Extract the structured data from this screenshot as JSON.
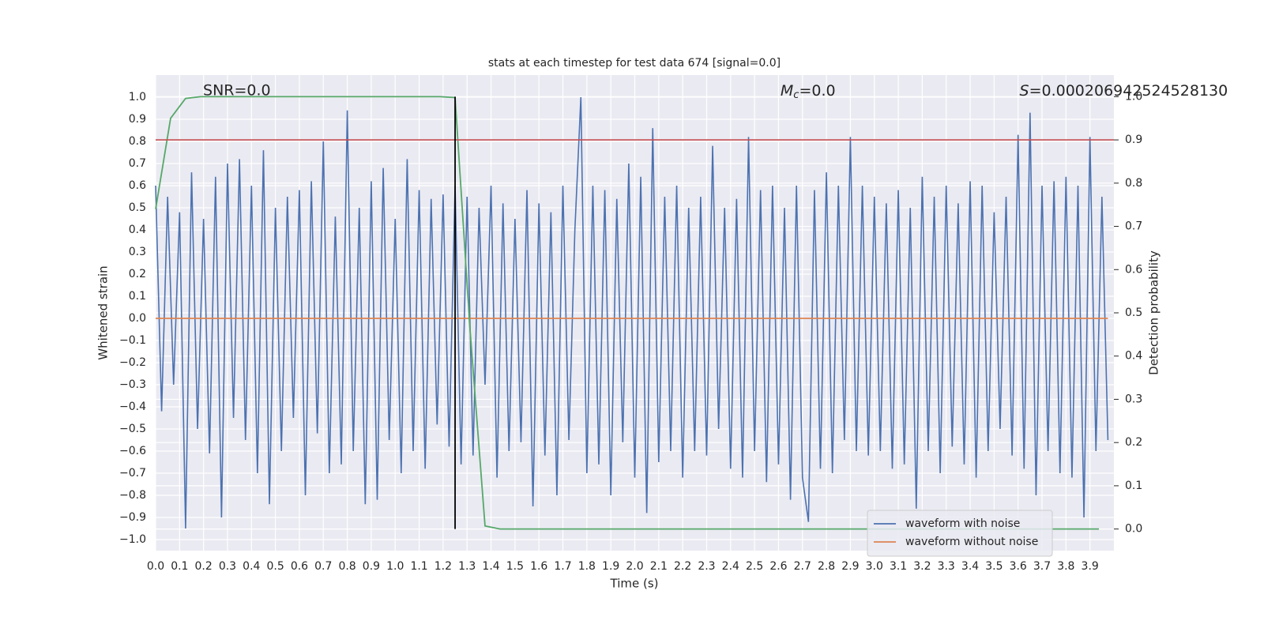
{
  "chart_data": {
    "type": "line",
    "title": "stats at each timestep for test data 674 [signal=0.0]",
    "xlabel": "Time (s)",
    "ylabel": "Whitened strain",
    "y2label": "Detection probability",
    "xlim": [
      0,
      4.0
    ],
    "ylim": [
      -1.05,
      1.1
    ],
    "y2lim": [
      -0.05,
      1.05
    ],
    "grid": true,
    "legend_loc": "lower right",
    "xticks": [
      {
        "value": 0,
        "label": "0.0"
      },
      0.1,
      0.2,
      0.3,
      0.4,
      0.5,
      0.6,
      0.7,
      0.8,
      0.9,
      {
        "value": 1,
        "label": "1.0"
      },
      1.1,
      1.2,
      1.3,
      1.4,
      1.5,
      1.6,
      1.7,
      1.8,
      1.9,
      {
        "value": 2,
        "label": "2.0"
      },
      2.1,
      2.2,
      2.3,
      2.4,
      2.5,
      2.6,
      2.7,
      2.8,
      2.9,
      {
        "value": 3,
        "label": "3.0"
      },
      3.1,
      3.2,
      3.3,
      3.4,
      3.5,
      3.6,
      3.7,
      3.8,
      3.9
    ],
    "yticks": [
      {
        "value": -1,
        "label": "−1.0"
      },
      {
        "value": -0.9,
        "label": "−0.9"
      },
      {
        "value": -0.8,
        "label": "−0.8"
      },
      {
        "value": -0.7,
        "label": "−0.7"
      },
      {
        "value": -0.6,
        "label": "−0.6"
      },
      {
        "value": -0.5,
        "label": "−0.5"
      },
      {
        "value": -0.4,
        "label": "−0.4"
      },
      {
        "value": -0.3,
        "label": "−0.3"
      },
      {
        "value": -0.2,
        "label": "−0.2"
      },
      {
        "value": -0.1,
        "label": "−0.1"
      },
      {
        "value": 0,
        "label": "0.0"
      },
      0.1,
      0.2,
      0.3,
      0.4,
      0.5,
      0.6,
      0.7,
      0.8,
      0.9,
      {
        "value": 1,
        "label": "1.0"
      }
    ],
    "y2ticks": [
      {
        "value": 0,
        "label": "0.0"
      },
      0.1,
      0.2,
      0.3,
      0.4,
      0.5,
      0.6,
      0.7,
      0.8,
      0.9,
      {
        "value": 1,
        "label": "1.0"
      }
    ],
    "threshold": {
      "value": 0.9,
      "axis": "y2",
      "color": "#c44e52"
    },
    "marker_x": {
      "value": 1.25,
      "color": "#000000"
    },
    "annotations": {
      "snr": "SNR=0.0",
      "mc": {
        "symbol": "M",
        "subscript": "c",
        "text": "=0.0"
      },
      "s": {
        "symbol": "S",
        "text": "=0.000206942524528130"
      }
    },
    "series": [
      {
        "name": "waveform with noise",
        "color": "#4c72b0",
        "legend": true,
        "x": [
          0,
          0.025,
          0.05,
          0.075,
          0.1,
          0.125,
          0.15,
          0.175,
          0.2,
          0.225,
          0.25,
          0.275,
          0.3,
          0.325,
          0.35,
          0.375,
          0.4,
          0.425,
          0.45,
          0.475,
          0.5,
          0.525,
          0.55,
          0.575,
          0.6,
          0.625,
          0.65,
          0.675,
          0.7,
          0.725,
          0.75,
          0.775,
          0.8,
          0.825,
          0.85,
          0.875,
          0.9,
          0.925,
          0.95,
          0.975,
          1,
          1.025,
          1.05,
          1.075,
          1.1,
          1.125,
          1.15,
          1.175,
          1.2,
          1.225,
          1.25,
          1.275,
          1.3,
          1.325,
          1.35,
          1.375,
          1.4,
          1.425,
          1.45,
          1.475,
          1.5,
          1.525,
          1.55,
          1.575,
          1.6,
          1.625,
          1.65,
          1.675,
          1.7,
          1.725,
          1.75,
          1.775,
          1.8,
          1.825,
          1.85,
          1.875,
          1.9,
          1.925,
          1.95,
          1.975,
          2,
          2.025,
          2.05,
          2.075,
          2.1,
          2.125,
          2.15,
          2.175,
          2.2,
          2.225,
          2.25,
          2.275,
          2.3,
          2.325,
          2.35,
          2.375,
          2.4,
          2.425,
          2.45,
          2.475,
          2.5,
          2.525,
          2.55,
          2.575,
          2.6,
          2.625,
          2.65,
          2.675,
          2.7,
          2.725,
          2.75,
          2.775,
          2.8,
          2.825,
          2.85,
          2.875,
          2.9,
          2.925,
          2.95,
          2.975,
          3,
          3.025,
          3.05,
          3.075,
          3.1,
          3.125,
          3.15,
          3.175,
          3.2,
          3.225,
          3.25,
          3.275,
          3.3,
          3.325,
          3.35,
          3.375,
          3.4,
          3.425,
          3.45,
          3.475,
          3.5,
          3.525,
          3.55,
          3.575,
          3.6,
          3.625,
          3.65,
          3.675,
          3.7,
          3.725,
          3.75,
          3.775,
          3.8,
          3.825,
          3.85,
          3.875,
          3.9,
          3.925,
          3.95,
          3.975
        ],
        "values": [
          0.6,
          -0.42,
          0.55,
          -0.3,
          0.48,
          -0.95,
          0.66,
          -0.5,
          0.45,
          -0.61,
          0.64,
          -0.9,
          0.7,
          -0.45,
          0.72,
          -0.55,
          0.6,
          -0.7,
          0.76,
          -0.84,
          0.5,
          -0.6,
          0.55,
          -0.45,
          0.58,
          -0.8,
          0.62,
          -0.52,
          0.8,
          -0.7,
          0.46,
          -0.66,
          0.94,
          -0.6,
          0.5,
          -0.84,
          0.62,
          -0.82,
          0.68,
          -0.55,
          0.45,
          -0.7,
          0.72,
          -0.6,
          0.58,
          -0.68,
          0.54,
          -0.48,
          0.56,
          -0.58,
          0.6,
          -0.66,
          0.55,
          -0.62,
          0.5,
          -0.3,
          0.6,
          -0.72,
          0.52,
          -0.6,
          0.45,
          -0.56,
          0.58,
          -0.85,
          0.52,
          -0.62,
          0.48,
          -0.8,
          0.6,
          -0.55,
          0.4,
          1.0,
          -0.7,
          0.6,
          -0.66,
          0.58,
          -0.8,
          0.54,
          -0.56,
          0.7,
          -0.72,
          0.64,
          -0.88,
          0.86,
          -0.65,
          0.55,
          -0.6,
          0.6,
          -0.72,
          0.5,
          -0.6,
          0.55,
          -0.62,
          0.78,
          -0.5,
          0.5,
          -0.68,
          0.54,
          -0.72,
          0.82,
          -0.6,
          0.58,
          -0.74,
          0.6,
          -0.66,
          0.5,
          -0.82,
          0.6,
          -0.72,
          -0.92,
          0.58,
          -0.68,
          0.66,
          -0.7,
          0.6,
          -0.55,
          0.82,
          -0.6,
          0.6,
          -0.62,
          0.55,
          -0.6,
          0.52,
          -0.68,
          0.58,
          -0.66,
          0.5,
          -0.86,
          0.64,
          -0.6,
          0.55,
          -0.7,
          0.6,
          -0.58,
          0.52,
          -0.66,
          0.62,
          -0.72,
          0.6,
          -0.6,
          0.48,
          -0.5,
          0.55,
          -0.62,
          0.83,
          -0.68,
          0.93,
          -0.8,
          0.6,
          -0.6,
          0.62,
          -0.7,
          0.64,
          -0.72,
          0.6,
          -0.9,
          0.82,
          -0.6,
          0.55,
          -0.55
        ]
      },
      {
        "name": "waveform without noise",
        "color": "#dd8452",
        "legend": true,
        "x": [
          0,
          3.975
        ],
        "values": [
          0,
          0
        ]
      },
      {
        "name": "detection probability",
        "color": "#55a868",
        "legend": false,
        "axis": "y2",
        "x": [
          0,
          0.0625,
          0.125,
          0.1875,
          1.1875,
          1.25,
          1.3125,
          1.375,
          1.4375,
          3.9375
        ],
        "values": [
          0.74,
          0.95,
          0.996,
          1.0,
          1.0,
          0.998,
          0.46,
          0.007,
          0.0,
          0.0
        ]
      }
    ]
  }
}
